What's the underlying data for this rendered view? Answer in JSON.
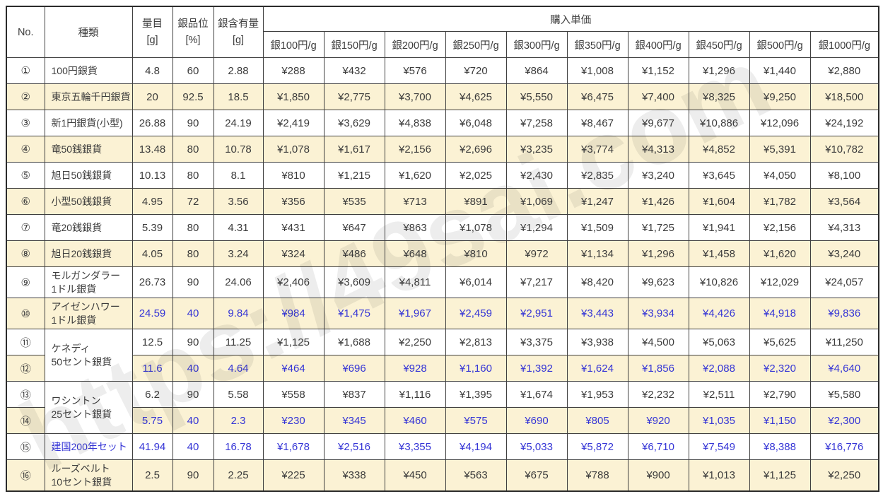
{
  "watermark": "https://49sai.com",
  "colors": {
    "shaded_row": "#FBF2D4",
    "blue_text": "#3535D6",
    "body_text": "#3C3C3C",
    "border": "#3F3F3F"
  },
  "table": {
    "headers": {
      "no": "No.",
      "type": "種類",
      "weight_line1": "量目",
      "weight_line2": "[g]",
      "purity_line1": "銀品位",
      "purity_line2": "[%]",
      "content_line1": "銀含有量",
      "content_line2": "[g]",
      "purchase": "購入単価",
      "price_cols": [
        "銀100円/g",
        "銀150円/g",
        "銀200円/g",
        "銀250円/g",
        "銀300円/g",
        "銀350円/g",
        "銀400円/g",
        "銀450円/g",
        "銀500円/g",
        "銀1000円/g"
      ]
    },
    "rows": [
      {
        "no": "①",
        "type": [
          "100円銀貨"
        ],
        "rowspan": 1,
        "weight": "4.8",
        "purity": "60",
        "content": "2.88",
        "prices": [
          "¥288",
          "¥432",
          "¥576",
          "¥720",
          "¥864",
          "¥1,008",
          "¥1,152",
          "¥1,296",
          "¥1,440",
          "¥2,880"
        ],
        "shaded": false,
        "blue": false,
        "tall": false,
        "type_blue": false
      },
      {
        "no": "②",
        "type": [
          "東京五輪千円銀貨"
        ],
        "rowspan": 1,
        "weight": "20",
        "purity": "92.5",
        "content": "18.5",
        "prices": [
          "¥1,850",
          "¥2,775",
          "¥3,700",
          "¥4,625",
          "¥5,550",
          "¥6,475",
          "¥7,400",
          "¥8,325",
          "¥9,250",
          "¥18,500"
        ],
        "shaded": true,
        "blue": false,
        "tall": false,
        "type_blue": false
      },
      {
        "no": "③",
        "type": [
          "新1円銀貨(小型)"
        ],
        "rowspan": 1,
        "weight": "26.88",
        "purity": "90",
        "content": "24.19",
        "prices": [
          "¥2,419",
          "¥3,629",
          "¥4,838",
          "¥6,048",
          "¥7,258",
          "¥8,467",
          "¥9,677",
          "¥10,886",
          "¥12,096",
          "¥24,192"
        ],
        "shaded": false,
        "blue": false,
        "tall": false,
        "type_blue": false
      },
      {
        "no": "④",
        "type": [
          "竜50銭銀貨"
        ],
        "rowspan": 1,
        "weight": "13.48",
        "purity": "80",
        "content": "10.78",
        "prices": [
          "¥1,078",
          "¥1,617",
          "¥2,156",
          "¥2,696",
          "¥3,235",
          "¥3,774",
          "¥4,313",
          "¥4,852",
          "¥5,391",
          "¥10,782"
        ],
        "shaded": true,
        "blue": false,
        "tall": false,
        "type_blue": false
      },
      {
        "no": "⑤",
        "type": [
          "旭日50銭銀貨"
        ],
        "rowspan": 1,
        "weight": "10.13",
        "purity": "80",
        "content": "8.1",
        "prices": [
          "¥810",
          "¥1,215",
          "¥1,620",
          "¥2,025",
          "¥2,430",
          "¥2,835",
          "¥3,240",
          "¥3,645",
          "¥4,050",
          "¥8,100"
        ],
        "shaded": false,
        "blue": false,
        "tall": false,
        "type_blue": false
      },
      {
        "no": "⑥",
        "type": [
          "小型50銭銀貨"
        ],
        "rowspan": 1,
        "weight": "4.95",
        "purity": "72",
        "content": "3.56",
        "prices": [
          "¥356",
          "¥535",
          "¥713",
          "¥891",
          "¥1,069",
          "¥1,247",
          "¥1,426",
          "¥1,604",
          "¥1,782",
          "¥3,564"
        ],
        "shaded": true,
        "blue": false,
        "tall": false,
        "type_blue": false
      },
      {
        "no": "⑦",
        "type": [
          "竜20銭銀貨"
        ],
        "rowspan": 1,
        "weight": "5.39",
        "purity": "80",
        "content": "4.31",
        "prices": [
          "¥431",
          "¥647",
          "¥863",
          "¥1,078",
          "¥1,294",
          "¥1,509",
          "¥1,725",
          "¥1,941",
          "¥2,156",
          "¥4,313"
        ],
        "shaded": false,
        "blue": false,
        "tall": false,
        "type_blue": false
      },
      {
        "no": "⑧",
        "type": [
          "旭日20銭銀貨"
        ],
        "rowspan": 1,
        "weight": "4.05",
        "purity": "80",
        "content": "3.24",
        "prices": [
          "¥324",
          "¥486",
          "¥648",
          "¥810",
          "¥972",
          "¥1,134",
          "¥1,296",
          "¥1,458",
          "¥1,620",
          "¥3,240"
        ],
        "shaded": true,
        "blue": false,
        "tall": false,
        "type_blue": false
      },
      {
        "no": "⑨",
        "type": [
          "モルガンダラー",
          "1ドル銀貨"
        ],
        "rowspan": 1,
        "weight": "26.73",
        "purity": "90",
        "content": "24.06",
        "prices": [
          "¥2,406",
          "¥3,609",
          "¥4,811",
          "¥6,014",
          "¥7,217",
          "¥8,420",
          "¥9,623",
          "¥10,826",
          "¥12,029",
          "¥24,057"
        ],
        "shaded": false,
        "blue": false,
        "tall": true,
        "type_blue": false
      },
      {
        "no": "⑩",
        "type": [
          "アイゼンハワー",
          "1ドル銀貨"
        ],
        "rowspan": 1,
        "weight": "24.59",
        "purity": "40",
        "content": "9.84",
        "prices": [
          "¥984",
          "¥1,475",
          "¥1,967",
          "¥2,459",
          "¥2,951",
          "¥3,443",
          "¥3,934",
          "¥4,426",
          "¥4,918",
          "¥9,836"
        ],
        "shaded": true,
        "blue": true,
        "tall": true,
        "type_blue": false
      },
      {
        "no": "⑪",
        "type": [
          "ケネディ",
          "50セント銀貨"
        ],
        "rowspan": 2,
        "weight": "12.5",
        "purity": "90",
        "content": "11.25",
        "prices": [
          "¥1,125",
          "¥1,688",
          "¥2,250",
          "¥2,813",
          "¥3,375",
          "¥3,938",
          "¥4,500",
          "¥5,063",
          "¥5,625",
          "¥11,250"
        ],
        "shaded": false,
        "blue": false,
        "tall": false,
        "type_blue": false
      },
      {
        "no": "⑫",
        "type": null,
        "rowspan": 0,
        "weight": "11.6",
        "purity": "40",
        "content": "4.64",
        "prices": [
          "¥464",
          "¥696",
          "¥928",
          "¥1,160",
          "¥1,392",
          "¥1,624",
          "¥1,856",
          "¥2,088",
          "¥2,320",
          "¥4,640"
        ],
        "shaded": true,
        "blue": true,
        "tall": false,
        "type_blue": false
      },
      {
        "no": "⑬",
        "type": [
          "ワシントン",
          "25セント銀貨"
        ],
        "rowspan": 2,
        "weight": "6.2",
        "purity": "90",
        "content": "5.58",
        "prices": [
          "¥558",
          "¥837",
          "¥1,116",
          "¥1,395",
          "¥1,674",
          "¥1,953",
          "¥2,232",
          "¥2,511",
          "¥2,790",
          "¥5,580"
        ],
        "shaded": false,
        "blue": false,
        "tall": false,
        "type_blue": false
      },
      {
        "no": "⑭",
        "type": null,
        "rowspan": 0,
        "weight": "5.75",
        "purity": "40",
        "content": "2.3",
        "prices": [
          "¥230",
          "¥345",
          "¥460",
          "¥575",
          "¥690",
          "¥805",
          "¥920",
          "¥1,035",
          "¥1,150",
          "¥2,300"
        ],
        "shaded": true,
        "blue": true,
        "tall": false,
        "type_blue": false
      },
      {
        "no": "⑮",
        "type": [
          "建国200年セット"
        ],
        "rowspan": 1,
        "weight": "41.94",
        "purity": "40",
        "content": "16.78",
        "prices": [
          "¥1,678",
          "¥2,516",
          "¥3,355",
          "¥4,194",
          "¥5,033",
          "¥5,872",
          "¥6,710",
          "¥7,549",
          "¥8,388",
          "¥16,776"
        ],
        "shaded": false,
        "blue": true,
        "tall": false,
        "type_blue": true
      },
      {
        "no": "⑯",
        "type": [
          "ルーズベルト",
          "10セント銀貨"
        ],
        "rowspan": 1,
        "weight": "2.5",
        "purity": "90",
        "content": "2.25",
        "prices": [
          "¥225",
          "¥338",
          "¥450",
          "¥563",
          "¥675",
          "¥788",
          "¥900",
          "¥1,013",
          "¥1,125",
          "¥2,250"
        ],
        "shaded": true,
        "blue": false,
        "tall": true,
        "type_blue": false
      }
    ]
  }
}
